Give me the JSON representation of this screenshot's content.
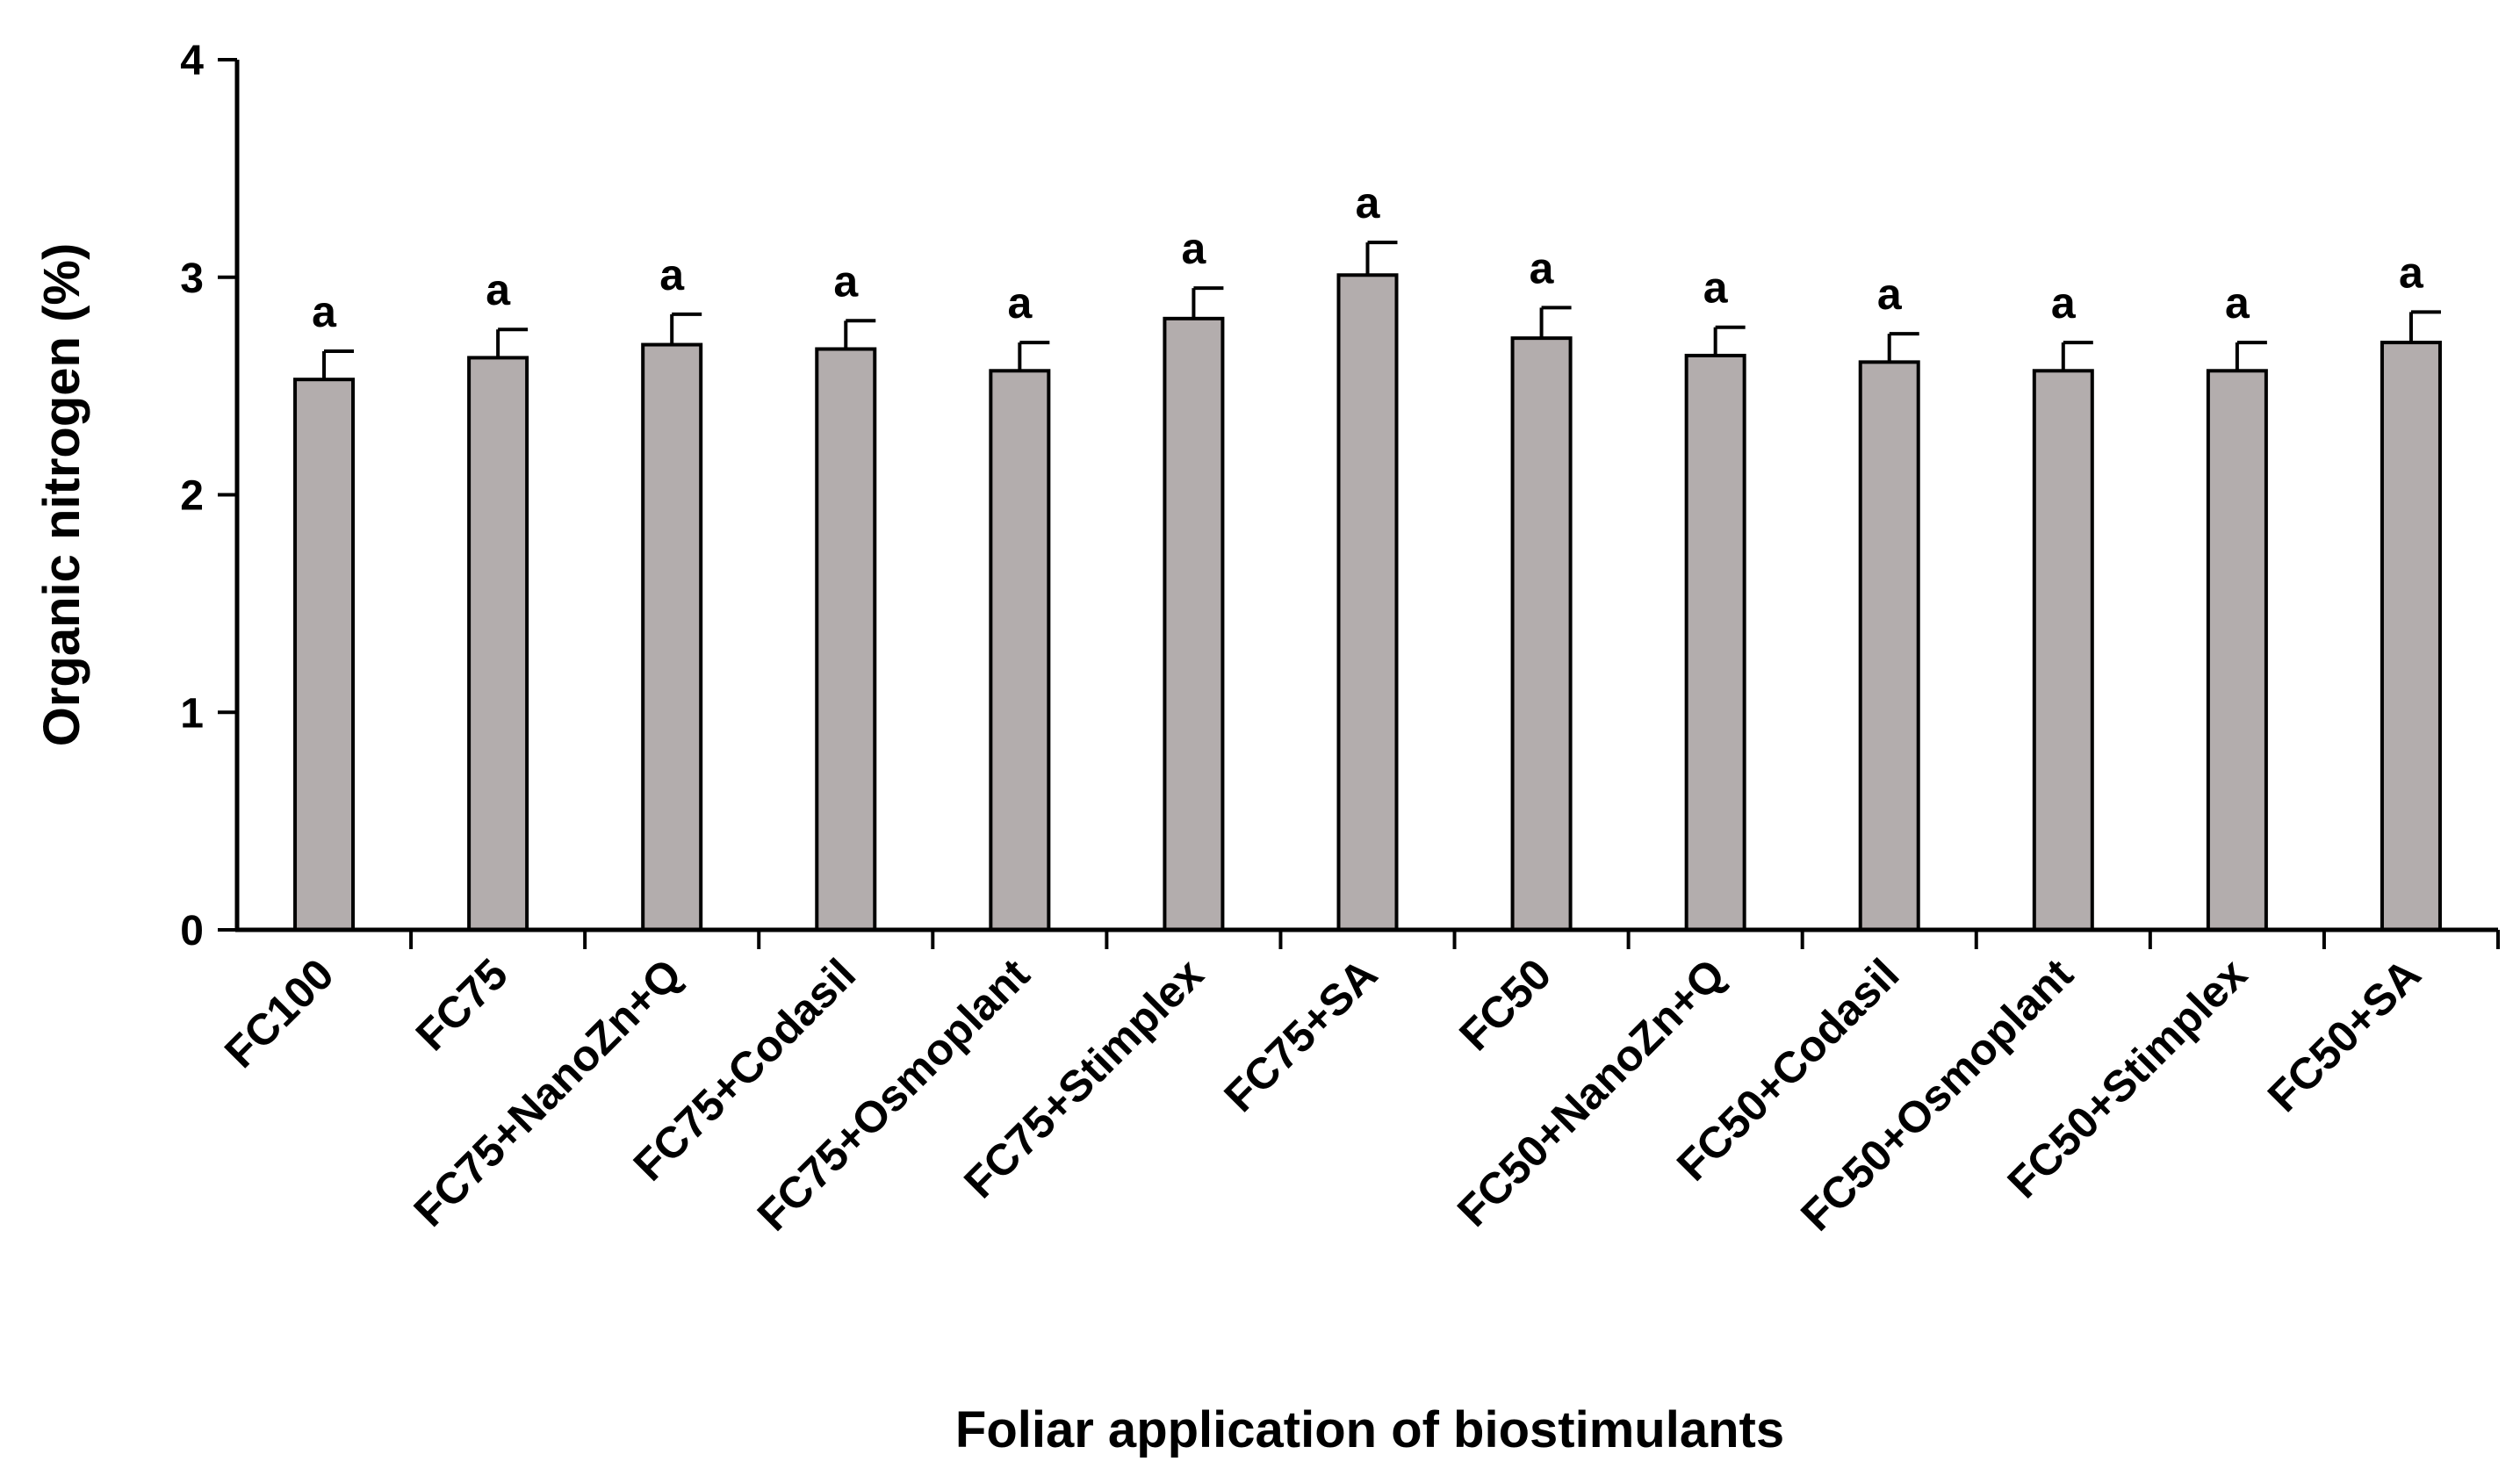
{
  "chart_data": {
    "type": "bar",
    "title": "",
    "xlabel": "Foliar application of biostimulants",
    "ylabel": "Organic nitrogen (%)",
    "ylim": [
      0,
      4
    ],
    "yticks": [
      "0",
      "1",
      "2",
      "3",
      "4"
    ],
    "grid": false,
    "legend": "none",
    "categories": [
      "FC100",
      "FC75",
      "FC75+NanoZn+Q",
      "FC75+Codasil",
      "FC75+Osmoplant",
      "FC75+Stimplex",
      "FC75+SA",
      "FC50",
      "FC50+NanoZn+Q",
      "FC50+Codasil",
      "FC50+Osmoplant",
      "FC50+Stimplex",
      "FC50+SA"
    ],
    "values": [
      2.53,
      2.63,
      2.69,
      2.67,
      2.57,
      2.81,
      3.01,
      2.72,
      2.64,
      2.61,
      2.57,
      2.57,
      2.7
    ],
    "errors": [
      0.13,
      0.13,
      0.14,
      0.13,
      0.13,
      0.14,
      0.15,
      0.14,
      0.13,
      0.13,
      0.13,
      0.13,
      0.14
    ],
    "significance": [
      "a",
      "a",
      "a",
      "a",
      "a",
      "a",
      "a",
      "a",
      "a",
      "a",
      "a",
      "a",
      "a"
    ],
    "colors": {
      "bar_fill": "#b3adad",
      "bar_stroke": "#000000",
      "axis": "#000000"
    }
  }
}
